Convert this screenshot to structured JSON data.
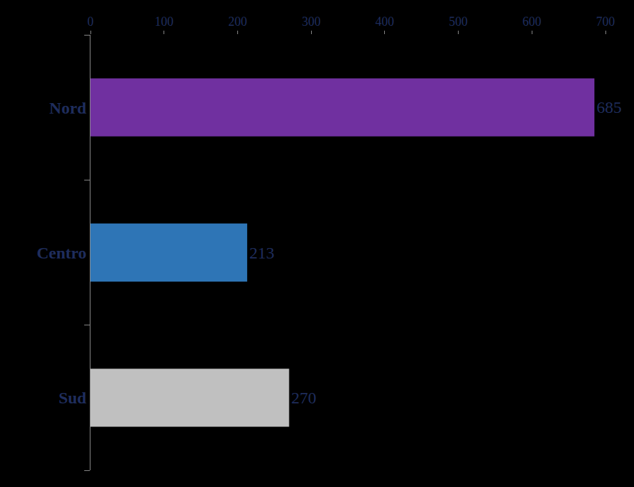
{
  "chart_data": {
    "type": "bar",
    "orientation": "horizontal",
    "categories": [
      "Nord",
      "Centro",
      "Sud"
    ],
    "values": [
      685,
      213,
      270
    ],
    "colors": [
      "#7030a0",
      "#2e75b6",
      "#c0c0c0"
    ],
    "xlim": [
      0,
      700
    ],
    "xticks": [
      0,
      100,
      200,
      300,
      400,
      500,
      600,
      700
    ],
    "data_labels": true,
    "grid": false
  }
}
